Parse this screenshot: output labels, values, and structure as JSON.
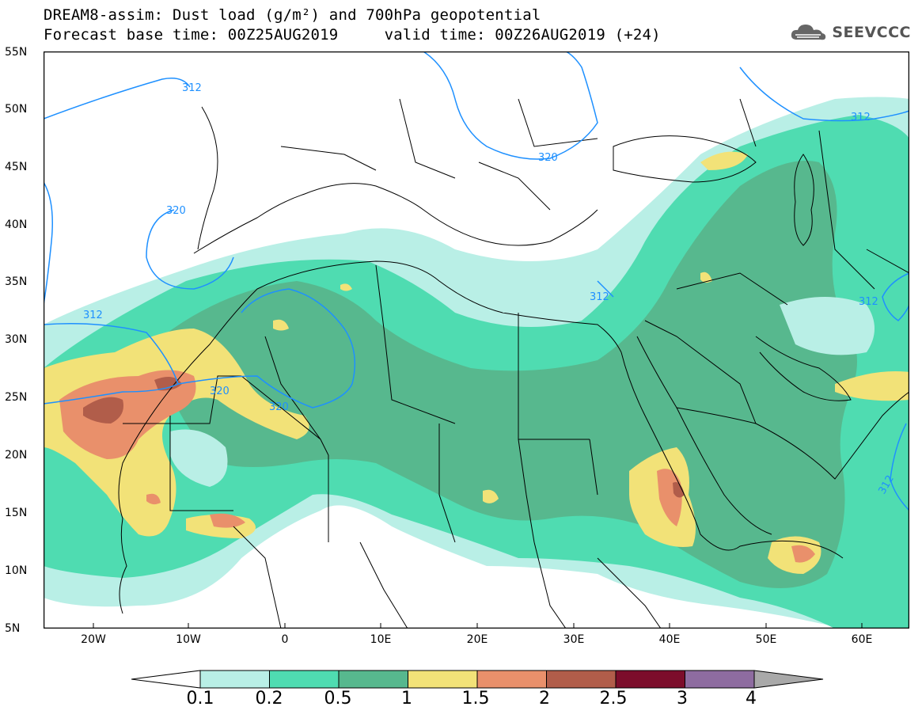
{
  "header": {
    "title": "DREAM8-assim: Dust load (g/m²) and 700hPa geopotential",
    "subtitle": "Forecast base time: 00Z25AUG2019     valid time: 00Z26AUG2019 (+24)"
  },
  "logo": {
    "text": "SEEVCCC",
    "icon": "cloud-icon"
  },
  "map": {
    "lat_labels": [
      "55N",
      "50N",
      "45N",
      "40N",
      "35N",
      "30N",
      "25N",
      "20N",
      "15N",
      "10N",
      "5N"
    ],
    "lon_labels": [
      "20W",
      "10W",
      "0",
      "10E",
      "20E",
      "30E",
      "40E",
      "50E",
      "60E"
    ],
    "contour_labels": [
      "312",
      "320",
      "312",
      "312",
      "320",
      "320",
      "320",
      "312",
      "312",
      "312"
    ],
    "colors": {
      "lightblue": "#b9efe6",
      "green": "#4fdcb1",
      "darkgreen": "#57b88e",
      "yellow": "#f2e278",
      "orange": "#e9906b",
      "brown": "#b15d4a",
      "contour": "#1e90ff"
    }
  },
  "colorbar": {
    "labels": [
      "0.1",
      "0.2",
      "0.5",
      "1",
      "1.5",
      "2",
      "2.5",
      "3",
      "4"
    ],
    "colors": [
      "#b9efe6",
      "#4fdcb1",
      "#57b88e",
      "#f2e278",
      "#e9906b",
      "#b15d4a",
      "#7c0d2b",
      "#8e6ca0"
    ]
  }
}
